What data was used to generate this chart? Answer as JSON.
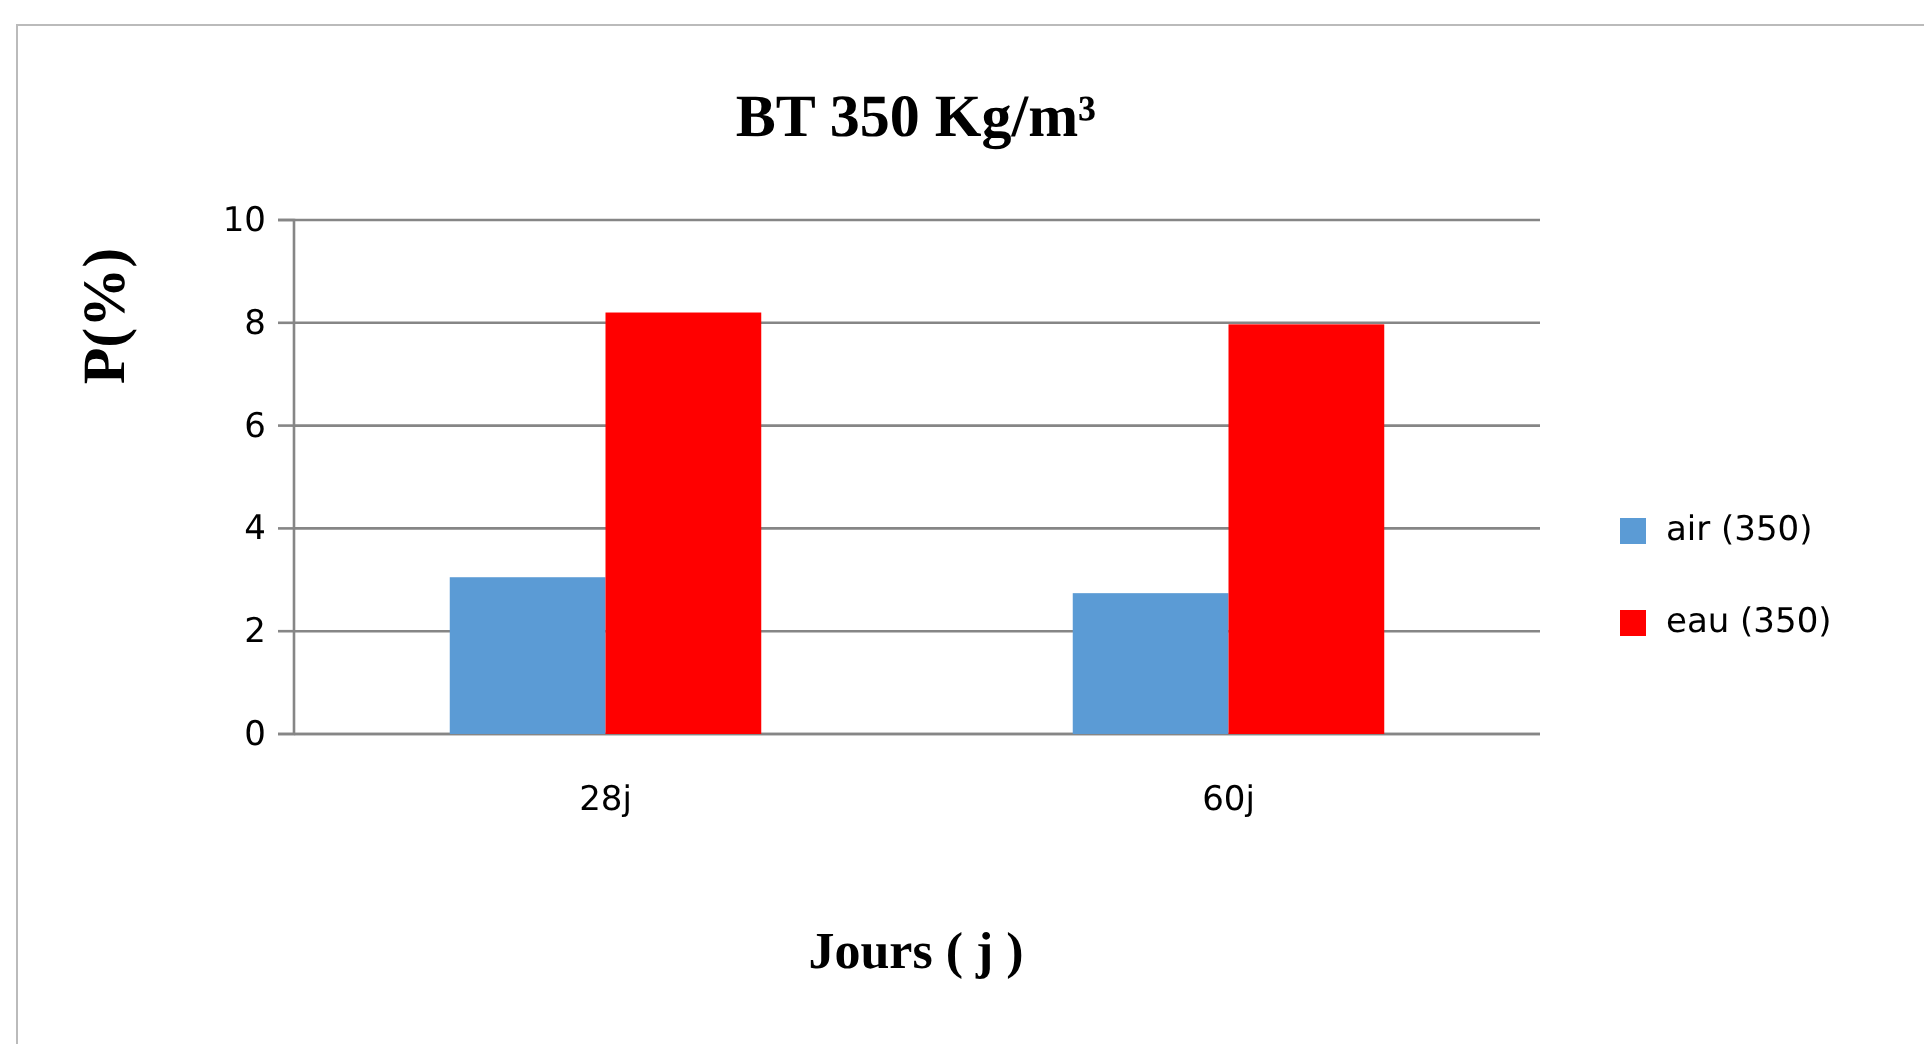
{
  "chart_data": {
    "type": "bar",
    "title": "BT 350 Kg/m³",
    "xlabel": "Jours ( j )",
    "ylabel": "P(%)",
    "categories": [
      "28j",
      "60j"
    ],
    "series": [
      {
        "name": "air (350)",
        "color": "#5b9bd5",
        "values": [
          3.05,
          2.74
        ]
      },
      {
        "name": "eau (350)",
        "color": "#ff0000",
        "values": [
          8.2,
          7.97
        ]
      }
    ],
    "ylim": [
      0,
      10
    ],
    "yticks": [
      0,
      2,
      4,
      6,
      8,
      10
    ],
    "grid": "y",
    "legend": "right"
  }
}
